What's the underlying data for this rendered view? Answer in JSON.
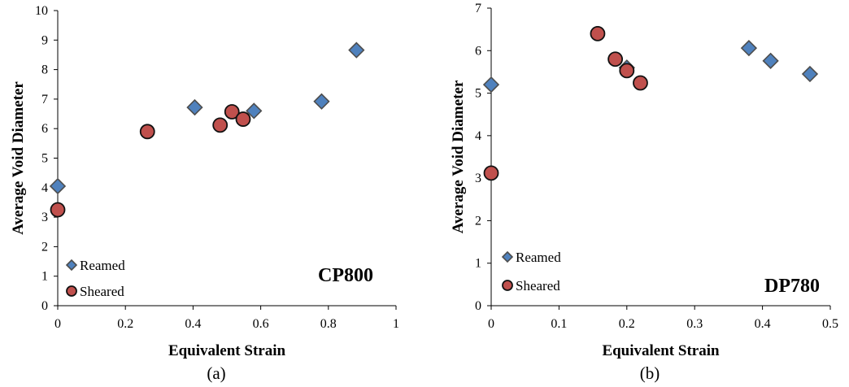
{
  "colors": {
    "reamed_fill": "#4f81bd",
    "reamed_stroke": "#4d4d4d",
    "sheared_fill": "#c0504d",
    "sheared_stroke": "#111111",
    "axis": "#000000"
  },
  "chart_data": [
    {
      "type": "scatter",
      "panel_label": "CP800",
      "caption": "(a)",
      "xlabel": "Equivalent Strain",
      "ylabel": "Average Void Diameter",
      "xlim": [
        0,
        1
      ],
      "ylim": [
        0,
        10
      ],
      "xticks": [
        0,
        0.2,
        0.4,
        0.6,
        0.8,
        1
      ],
      "yticks": [
        0,
        1,
        2,
        3,
        4,
        5,
        6,
        7,
        8,
        9,
        10
      ],
      "xtick_labels": [
        "0",
        "0.2",
        "0.4",
        "0.6",
        "0.8",
        "1"
      ],
      "ytick_labels": [
        "0",
        "1",
        "2",
        "3",
        "4",
        "5",
        "6",
        "7",
        "8",
        "9",
        "10"
      ],
      "grid": false,
      "legend_position": "bottom-left",
      "series": [
        {
          "name": "Reamed",
          "marker": "diamond",
          "points": [
            {
              "x": 0.0,
              "y": 4.05
            },
            {
              "x": 0.405,
              "y": 6.72
            },
            {
              "x": 0.58,
              "y": 6.6
            },
            {
              "x": 0.78,
              "y": 6.92
            },
            {
              "x": 0.883,
              "y": 8.66
            }
          ]
        },
        {
          "name": "Sheared",
          "marker": "circle",
          "points": [
            {
              "x": 0.0,
              "y": 3.25
            },
            {
              "x": 0.265,
              "y": 5.9
            },
            {
              "x": 0.48,
              "y": 6.12
            },
            {
              "x": 0.515,
              "y": 6.57
            },
            {
              "x": 0.548,
              "y": 6.32
            }
          ]
        }
      ]
    },
    {
      "type": "scatter",
      "panel_label": "DP780",
      "caption": "(b)",
      "xlabel": "Equivalent Strain",
      "ylabel": "Average Void Diameter",
      "xlim": [
        0,
        0.5
      ],
      "ylim": [
        0,
        7
      ],
      "xticks": [
        0,
        0.1,
        0.2,
        0.3,
        0.4,
        0.5
      ],
      "yticks": [
        0,
        1,
        2,
        3,
        4,
        5,
        6,
        7
      ],
      "xtick_labels": [
        "0",
        "0.1",
        "0.2",
        "0.3",
        "0.4",
        "0.5"
      ],
      "ytick_labels": [
        "0",
        "1",
        "2",
        "3",
        "4",
        "5",
        "6",
        "7"
      ],
      "grid": false,
      "legend_position": "bottom-left",
      "series": [
        {
          "name": "Reamed",
          "marker": "diamond",
          "points": [
            {
              "x": 0.0,
              "y": 5.2
            },
            {
              "x": 0.2,
              "y": 5.6
            },
            {
              "x": 0.38,
              "y": 6.06
            },
            {
              "x": 0.412,
              "y": 5.76
            },
            {
              "x": 0.47,
              "y": 5.45
            }
          ]
        },
        {
          "name": "Sheared",
          "marker": "circle",
          "points": [
            {
              "x": 0.0,
              "y": 3.12
            },
            {
              "x": 0.157,
              "y": 6.4
            },
            {
              "x": 0.183,
              "y": 5.8
            },
            {
              "x": 0.2,
              "y": 5.53
            },
            {
              "x": 0.22,
              "y": 5.24
            }
          ]
        }
      ]
    }
  ]
}
